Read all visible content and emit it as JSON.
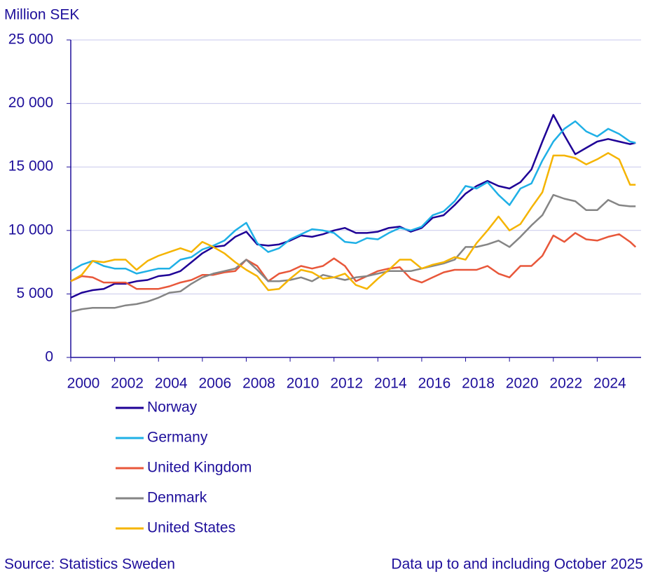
{
  "chart_data": {
    "type": "line",
    "y_label": "Million SEK",
    "x": [
      2000,
      2000.5,
      2001,
      2001.5,
      2002,
      2002.5,
      2003,
      2003.5,
      2004,
      2004.5,
      2005,
      2005.5,
      2006,
      2006.5,
      2007,
      2007.5,
      2008,
      2008.5,
      2009,
      2009.5,
      2010,
      2010.5,
      2011,
      2011.5,
      2012,
      2012.5,
      2013,
      2013.5,
      2014,
      2014.5,
      2015,
      2015.5,
      2016,
      2016.5,
      2017,
      2017.5,
      2018,
      2018.5,
      2019,
      2019.5,
      2020,
      2020.5,
      2021,
      2021.5,
      2022,
      2022.5,
      2023,
      2023.5,
      2024,
      2024.5,
      2025,
      2025.5,
      2025.75
    ],
    "series": [
      {
        "name": "Norway",
        "color": "#1e0096",
        "values": [
          4700,
          5100,
          5300,
          5400,
          5800,
          5800,
          6000,
          6100,
          6400,
          6500,
          6800,
          7500,
          8200,
          8700,
          8800,
          9500,
          9900,
          8900,
          8800,
          8900,
          9200,
          9600,
          9500,
          9700,
          10000,
          10200,
          9800,
          9800,
          9900,
          10200,
          10300,
          9900,
          10200,
          11000,
          11200,
          12000,
          12900,
          13500,
          13900,
          13500,
          13300,
          13800,
          14800,
          17000,
          19100,
          17500,
          16000,
          16500,
          17000,
          17200,
          17000,
          16800,
          16900
        ]
      },
      {
        "name": "Germany",
        "color": "#1fb0e6",
        "values": [
          6800,
          7300,
          7600,
          7200,
          7000,
          7000,
          6600,
          6800,
          7000,
          7000,
          7700,
          7900,
          8500,
          8800,
          9200,
          10000,
          10600,
          9000,
          8300,
          8600,
          9300,
          9700,
          10100,
          10000,
          9800,
          9100,
          9000,
          9400,
          9300,
          9800,
          10200,
          10000,
          10300,
          11200,
          11500,
          12300,
          13500,
          13300,
          13800,
          12800,
          12000,
          13300,
          13700,
          15500,
          17000,
          18000,
          18600,
          17800,
          17400,
          18000,
          17600,
          17000,
          16900
        ]
      },
      {
        "name": "United Kingdom",
        "color": "#e8573a",
        "values": [
          6000,
          6400,
          6300,
          5900,
          5900,
          5900,
          5400,
          5400,
          5400,
          5600,
          5900,
          6100,
          6500,
          6500,
          6700,
          6800,
          7700,
          7200,
          6000,
          6600,
          6800,
          7200,
          7000,
          7200,
          7800,
          7200,
          6000,
          6400,
          6800,
          7000,
          7100,
          6200,
          5900,
          6300,
          6700,
          6900,
          6900,
          6900,
          7200,
          6600,
          6300,
          7200,
          7200,
          8000,
          9600,
          9100,
          9800,
          9300,
          9200,
          9500,
          9700,
          9100,
          8700
        ]
      },
      {
        "name": "Denmark",
        "color": "#858585",
        "values": [
          3600,
          3800,
          3900,
          3900,
          3900,
          4100,
          4200,
          4400,
          4700,
          5100,
          5200,
          5800,
          6300,
          6600,
          6800,
          7000,
          7700,
          6900,
          6000,
          6000,
          6100,
          6300,
          6000,
          6500,
          6300,
          6100,
          6300,
          6400,
          6600,
          6800,
          6800,
          6800,
          7000,
          7200,
          7400,
          7700,
          8700,
          8700,
          8900,
          9200,
          8700,
          9500,
          10400,
          11200,
          12800,
          12500,
          12300,
          11600,
          11600,
          12400,
          12000,
          11900,
          11900
        ]
      },
      {
        "name": "United States",
        "color": "#f5b400",
        "values": [
          6000,
          6500,
          7600,
          7500,
          7700,
          7700,
          6900,
          7600,
          8000,
          8300,
          8600,
          8300,
          9100,
          8700,
          8200,
          7500,
          6900,
          6400,
          5300,
          5400,
          6200,
          6900,
          6700,
          6200,
          6300,
          6600,
          5700,
          5400,
          6200,
          6900,
          7700,
          7700,
          7000,
          7300,
          7500,
          7900,
          7700,
          9000,
          10000,
          11100,
          10000,
          10500,
          11800,
          13000,
          15900,
          15900,
          15700,
          15200,
          15600,
          16100,
          15600,
          13600,
          13600
        ]
      }
    ],
    "xlim": [
      2000,
      2026
    ],
    "xticks": [
      2000,
      2002,
      2004,
      2006,
      2008,
      2010,
      2012,
      2014,
      2016,
      2018,
      2020,
      2022,
      2024
    ],
    "ylim": [
      0,
      25000
    ],
    "yticks": [
      0,
      {
        "value": 5000,
        "label": "5 000"
      },
      {
        "value": 10000,
        "label": "10 000"
      },
      {
        "value": 15000,
        "label": "15 000"
      },
      {
        "value": 20000,
        "label": "20 000"
      },
      {
        "value": 25000,
        "label": "25 000"
      }
    ],
    "grid": true,
    "legend": "bottom-left",
    "source": "Source: Statistics Sweden",
    "note": "Data up to and including October 2025"
  }
}
